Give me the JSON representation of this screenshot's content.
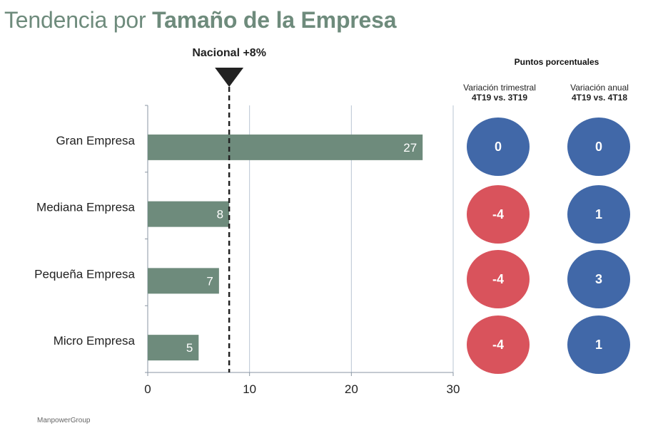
{
  "title": {
    "light": "Tendencia por ",
    "bold": "Tamaño de la Empresa"
  },
  "chart_data": {
    "type": "bar",
    "orientation": "horizontal",
    "categories": [
      "Gran Empresa",
      "Mediana Empresa",
      "Pequeña Empresa",
      "Micro Empresa"
    ],
    "values": [
      27,
      8,
      7,
      5
    ],
    "xlim": [
      0,
      30
    ],
    "xticks": [
      0,
      10,
      20,
      30
    ],
    "grid": true,
    "bar_color": "#6e8b7c",
    "reference_line": {
      "value": 8,
      "label": "Nacional +8%"
    }
  },
  "panel": {
    "title": "Puntos porcentuales",
    "columns": [
      {
        "label": "Variación trimestral",
        "sub": "4T19 vs. 3T19"
      },
      {
        "label": "Variación anual",
        "sub": "4T19 vs. 4T18"
      }
    ],
    "rows": [
      {
        "quarterly": "0",
        "annual": "0"
      },
      {
        "quarterly": "-4",
        "annual": "1"
      },
      {
        "quarterly": "-4",
        "annual": "3"
      },
      {
        "quarterly": "-4",
        "annual": "1"
      }
    ],
    "colors": {
      "negative": "#d9535c",
      "neutral_positive": "#4168a8"
    }
  },
  "footer": "ManpowerGroup"
}
